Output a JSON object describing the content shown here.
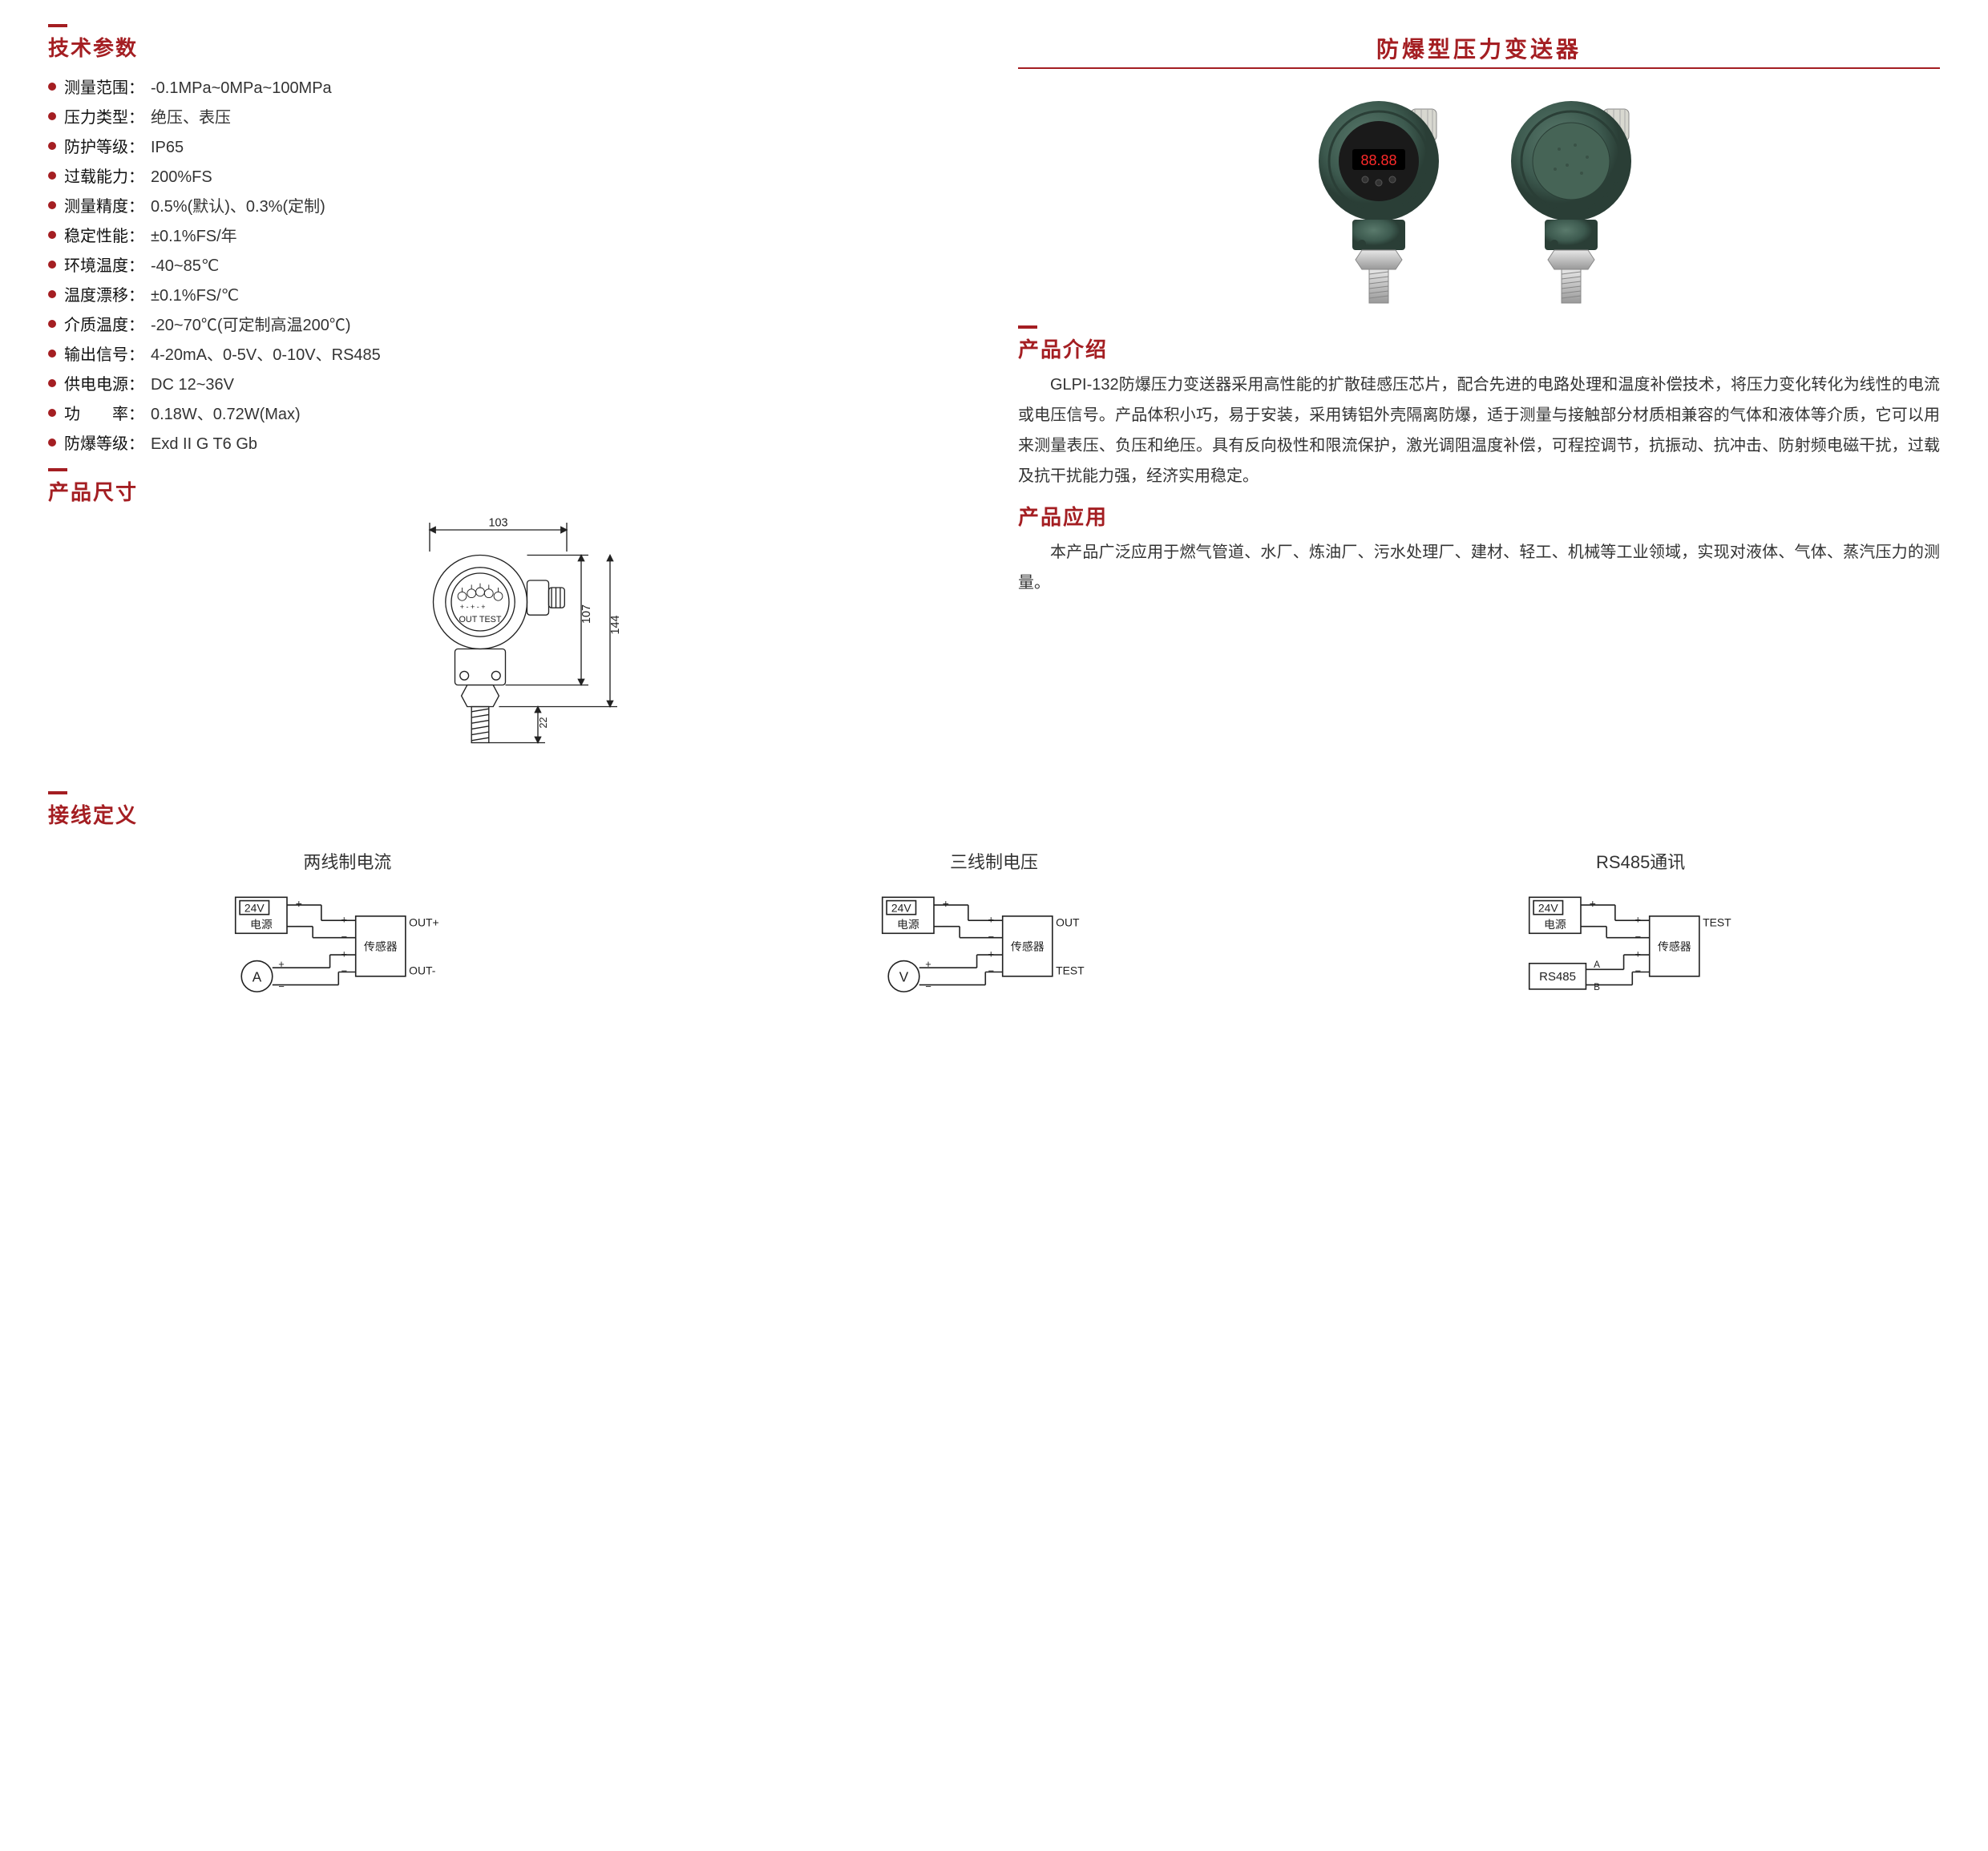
{
  "colors": {
    "accent": "#a41e22",
    "text": "#333333",
    "diagram_stroke": "#222222",
    "device_body": "#3d5a4f",
    "device_dark": "#2a3e36",
    "device_display_bg": "#1a1a1a",
    "device_display_led": "#ff2a2a",
    "metal": "#bfbfbf",
    "metal_light": "#e6e6e6"
  },
  "sections": {
    "specs_title": "技术参数",
    "dimensions_title": "产品尺寸",
    "wiring_title": "接线定义",
    "product_title": "防爆型压力变送器",
    "intro_title": "产品介绍",
    "app_title": "产品应用"
  },
  "specs": [
    {
      "label": "测量范围：",
      "value": "-0.1MPa~0MPa~100MPa"
    },
    {
      "label": "压力类型：",
      "value": "绝压、表压"
    },
    {
      "label": "防护等级：",
      "value": "IP65"
    },
    {
      "label": "过载能力：",
      "value": "200%FS"
    },
    {
      "label": "测量精度：",
      "value": "0.5%(默认)、0.3%(定制)"
    },
    {
      "label": "稳定性能：",
      "value": "±0.1%FS/年"
    },
    {
      "label": "环境温度：",
      "value": "-40~85℃"
    },
    {
      "label": "温度漂移：",
      "value": "±0.1%FS/℃"
    },
    {
      "label": "介质温度：",
      "value": "-20~70℃(可定制高温200℃)"
    },
    {
      "label": "输出信号：",
      "value": "4-20mA、0-5V、0-10V、RS485"
    },
    {
      "label": "供电电源：",
      "value": "DC 12~36V"
    },
    {
      "label": "功　　率：",
      "value": "0.18W、0.72W(Max)"
    },
    {
      "label": "防爆等级：",
      "value": "Exd II G T6 Gb"
    }
  ],
  "dimensions": {
    "width": "103",
    "body_height": "107",
    "total_height": "144",
    "connector_height": "22",
    "panel_label": "OUT TEST"
  },
  "intro_text": "GLPI-132防爆压力变送器采用高性能的扩散硅感压芯片，配合先进的电路处理和温度补偿技术，将压力变化转化为线性的电流或电压信号。产品体积小巧，易于安装，采用铸铝外壳隔离防爆，适于测量与接触部分材质相兼容的气体和液体等介质，它可以用来测量表压、负压和绝压。具有反向极性和限流保护，激光调阻温度补偿，可程控调节，抗振动、抗冲击、防射频电磁干扰，过载及抗干扰能力强，经济实用稳定。",
  "app_text": "本产品广泛应用于燃气管道、水厂、炼油厂、污水处理厂、建材、轻工、机械等工业领域，实现对液体、气体、蒸汽压力的测量。",
  "wiring": [
    {
      "title": "两线制电流",
      "left_top_label": "24V",
      "left_top_sub": "电源",
      "left_bottom_label": "A",
      "left_bottom_type": "circle",
      "right_top": "OUT+",
      "right_mid": "传感器",
      "right_bottom": "OUT-"
    },
    {
      "title": "三线制电压",
      "left_top_label": "24V",
      "left_top_sub": "电源",
      "left_bottom_label": "V",
      "left_bottom_type": "circle",
      "right_top": "OUT",
      "right_mid": "传感器",
      "right_bottom": "TEST"
    },
    {
      "title": "RS485通讯",
      "left_top_label": "24V",
      "left_top_sub": "电源",
      "left_bottom_label": "RS485",
      "left_bottom_type": "box",
      "right_top": "TEST",
      "right_mid": "传感器",
      "right_bottom": "",
      "bus_a": "A",
      "bus_b": "B"
    }
  ]
}
